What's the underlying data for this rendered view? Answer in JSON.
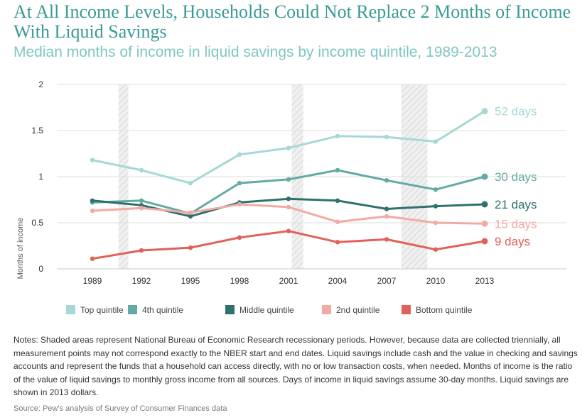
{
  "header": {
    "title": "At All Income Levels, Households Could Not Replace 2 Months of Income With Liquid Savings",
    "subtitle": "Median months of income in liquid savings by income quintile, 1989-2013"
  },
  "chart_data": {
    "type": "line",
    "title": "At All Income Levels, Households Could Not Replace 2 Months of Income With Liquid Savings",
    "subtitle": "Median months of income in liquid savings by income quintile, 1989-2013",
    "xlabel": "",
    "ylabel": "Months of income",
    "x": [
      1989,
      1992,
      1995,
      1998,
      2001,
      2004,
      2007,
      2010,
      2013
    ],
    "ylim": [
      0,
      2
    ],
    "yticks": [
      "0",
      "0.5",
      "1",
      "1.5",
      "2"
    ],
    "xticks": [
      "1989",
      "1992",
      "1995",
      "1998",
      "2001",
      "2004",
      "2007",
      "2010",
      "2013"
    ],
    "grid": true,
    "legend_position": "bottom",
    "recession_periods": [
      [
        1990.6,
        1991.2
      ],
      [
        2001.2,
        2001.9
      ],
      [
        2007.9,
        2009.5
      ]
    ],
    "series": [
      {
        "name": "Top quintile",
        "color": "#a6d8d4",
        "end_label": "52 days",
        "values": [
          1.18,
          1.07,
          0.93,
          1.24,
          1.31,
          1.44,
          1.43,
          1.38,
          1.71
        ]
      },
      {
        "name": "4th quintile",
        "color": "#63aaa4",
        "end_label": "30 days",
        "values": [
          0.72,
          0.74,
          0.6,
          0.93,
          0.97,
          1.07,
          0.96,
          0.86,
          1.0
        ]
      },
      {
        "name": "Middle quintile",
        "color": "#2f716c",
        "end_label": "21 days",
        "values": [
          0.74,
          0.69,
          0.57,
          0.72,
          0.76,
          0.74,
          0.65,
          0.68,
          0.7
        ]
      },
      {
        "name": "2nd quintile",
        "color": "#f2aaa4",
        "end_label": "15 days",
        "values": [
          0.63,
          0.66,
          0.61,
          0.7,
          0.67,
          0.51,
          0.57,
          0.5,
          0.49
        ]
      },
      {
        "name": "Bottom quintile",
        "color": "#e2605a",
        "end_label": "9 days",
        "values": [
          0.11,
          0.2,
          0.23,
          0.34,
          0.41,
          0.29,
          0.32,
          0.21,
          0.3
        ]
      }
    ]
  },
  "footer": {
    "notes": "Notes: Shaded areas represent National Bureau of Economic Research recessionary periods. However, because data are collected triennially, all measurement points may not correspond exactly to the NBER start and end dates. Liquid savings include cash and the value in checking and savings accounts and represent the funds that a household can access directly, with no or low transaction costs, when needed. Months of income is the ratio of the value of liquid savings to monthly gross income from all sources. Days of income in liquid savings assume 30-day months. Liquid savings are shown in 2013 dollars.",
    "source": "Source: Pew's analysis of Survey of Consumer Finances data"
  }
}
